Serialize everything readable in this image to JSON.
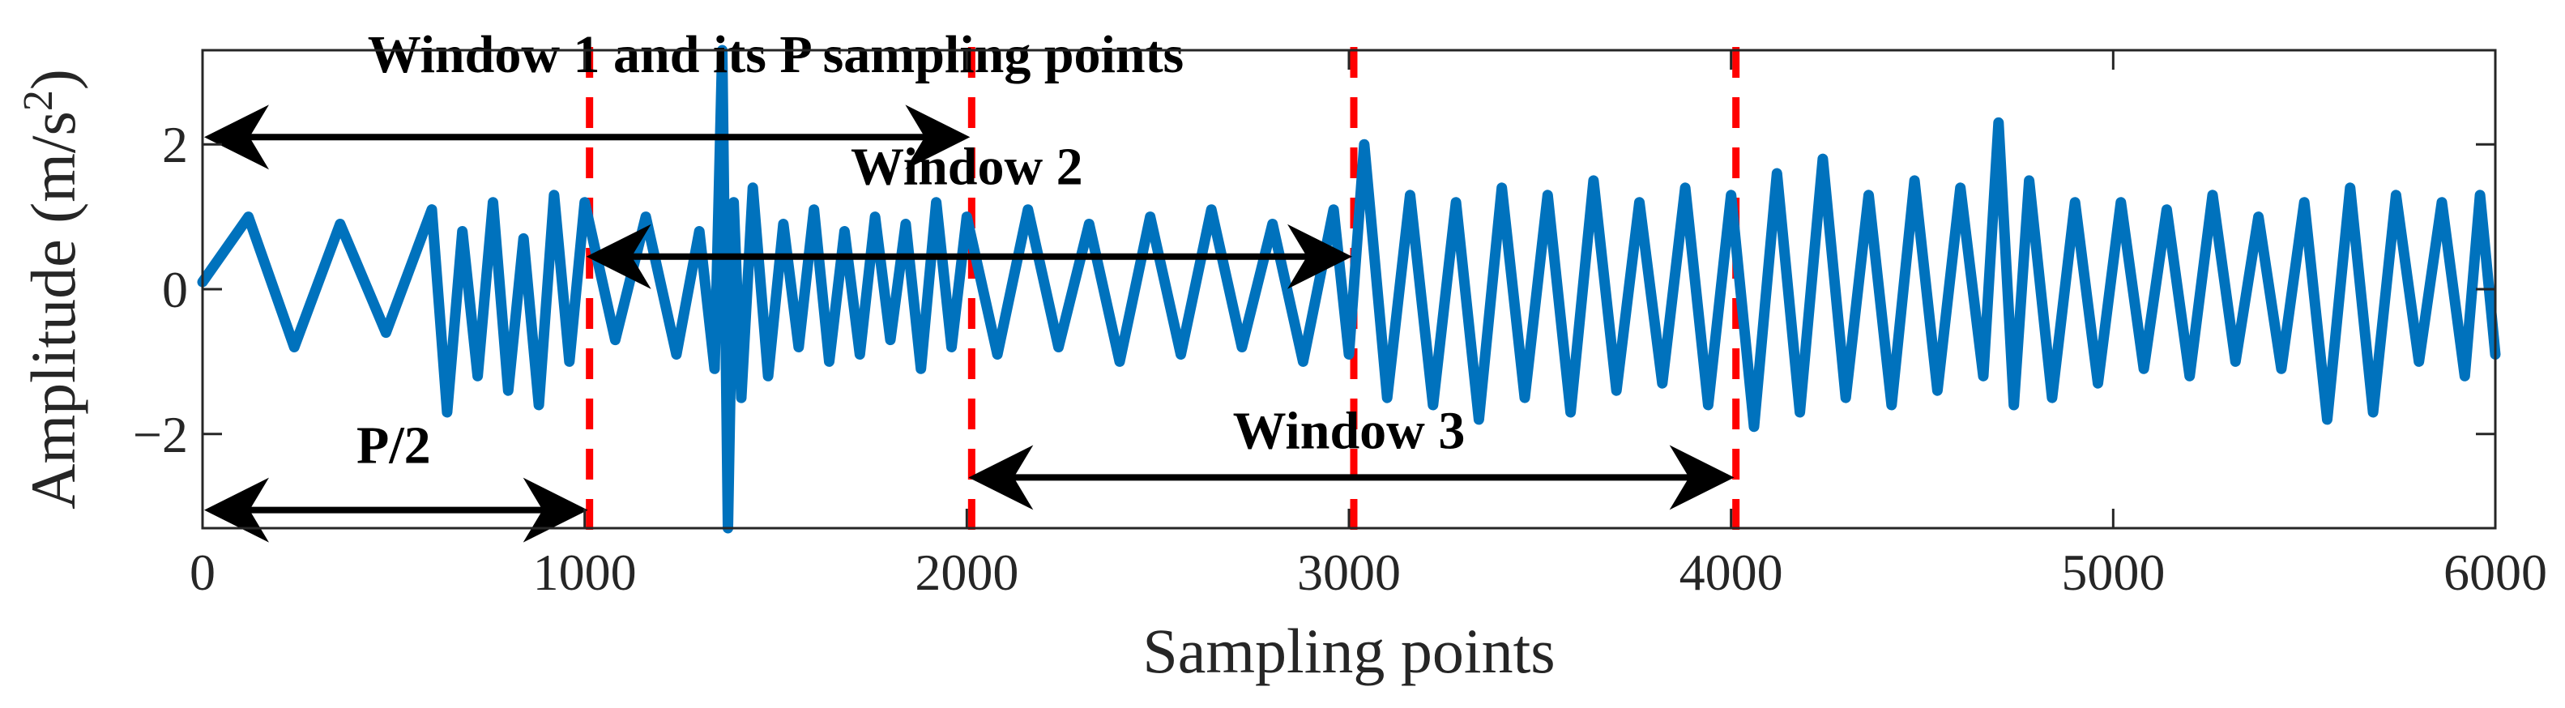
{
  "chart_data": {
    "type": "line",
    "title": "",
    "xlabel": "Sampling points",
    "ylabel": "Amplitude (m/s",
    "ylabel_sup": "2",
    "ylabel_close": ")",
    "xlim": [
      0,
      6000
    ],
    "ylim": [
      -3.3,
      3.3
    ],
    "xticks": [
      0,
      1000,
      2000,
      3000,
      4000,
      5000,
      6000
    ],
    "xtick_labels": [
      "0",
      "1000",
      "2000",
      "3000",
      "4000",
      "5000",
      "6000"
    ],
    "yticks": [
      -2,
      0,
      2
    ],
    "ytick_labels": [
      "−2",
      "0",
      "2"
    ],
    "grid": false,
    "legend": "none",
    "series": [
      {
        "color": "#0072BD",
        "x": [
          0,
          120,
          240,
          360,
          480,
          600,
          640,
          680,
          720,
          760,
          800,
          840,
          880,
          920,
          960,
          1000,
          1080,
          1160,
          1240,
          1300,
          1340,
          1360,
          1375,
          1390,
          1410,
          1440,
          1480,
          1520,
          1560,
          1600,
          1640,
          1680,
          1720,
          1760,
          1800,
          1840,
          1880,
          1920,
          1960,
          2000,
          2080,
          2160,
          2240,
          2320,
          2400,
          2480,
          2560,
          2640,
          2720,
          2800,
          2880,
          2960,
          3000,
          3040,
          3100,
          3160,
          3220,
          3280,
          3340,
          3400,
          3460,
          3520,
          3580,
          3640,
          3700,
          3760,
          3820,
          3880,
          3940,
          4000,
          4060,
          4120,
          4180,
          4240,
          4300,
          4360,
          4420,
          4480,
          4540,
          4600,
          4660,
          4700,
          4740,
          4780,
          4840,
          4900,
          4960,
          5020,
          5080,
          5140,
          5200,
          5260,
          5320,
          5380,
          5440,
          5500,
          5560,
          5620,
          5680,
          5740,
          5800,
          5860,
          5920,
          5960,
          6000
        ],
        "y": [
          0.1,
          1.0,
          -0.8,
          0.9,
          -0.6,
          1.1,
          -1.7,
          0.8,
          -1.2,
          1.2,
          -1.4,
          0.7,
          -1.6,
          1.3,
          -1.0,
          1.2,
          -0.7,
          1.0,
          -0.9,
          0.8,
          -1.1,
          3.3,
          -3.3,
          1.2,
          -1.5,
          1.4,
          -1.2,
          0.9,
          -0.8,
          1.1,
          -1.0,
          0.8,
          -0.9,
          1.0,
          -0.7,
          0.9,
          -1.1,
          1.2,
          -0.8,
          1.0,
          -0.9,
          1.1,
          -0.8,
          0.9,
          -1.0,
          1.0,
          -0.9,
          1.1,
          -0.8,
          0.9,
          -1.0,
          1.1,
          -0.9,
          2.0,
          -1.5,
          1.3,
          -1.6,
          1.2,
          -1.8,
          1.4,
          -1.5,
          1.3,
          -1.7,
          1.5,
          -1.4,
          1.2,
          -1.3,
          1.4,
          -1.6,
          1.3,
          -1.9,
          1.6,
          -1.7,
          1.8,
          -1.5,
          1.3,
          -1.6,
          1.5,
          -1.4,
          1.4,
          -1.2,
          2.3,
          -1.6,
          1.5,
          -1.5,
          1.2,
          -1.3,
          1.2,
          -1.1,
          1.1,
          -1.2,
          1.3,
          -1.0,
          1.0,
          -1.1,
          1.2,
          -1.8,
          1.4,
          -1.7,
          1.3,
          -1.0,
          1.2,
          -1.2,
          1.3,
          -0.9
        ]
      }
    ],
    "window_lines": [
      1000,
      2000,
      3000,
      4000
    ],
    "window_line_color": "#FF0000",
    "annotations": [
      {
        "text": "Window 1 and its P sampling points",
        "x": 1500,
        "y": 3.0
      },
      {
        "text": "Window 2",
        "x": 2000,
        "y": 1.45
      },
      {
        "text": "Window 3",
        "x": 3000,
        "y": -2.2
      },
      {
        "text": "P/2",
        "x": 500,
        "y": -2.4
      }
    ],
    "arrows": [
      {
        "name": "window-1-arrow",
        "from": 0,
        "to": 2000,
        "y": 2.1
      },
      {
        "name": "window-2-arrow",
        "from": 1000,
        "to": 3000,
        "y": 0.45
      },
      {
        "name": "window-3-arrow",
        "from": 2000,
        "to": 4000,
        "y": -2.6
      },
      {
        "name": "half-window-arrow",
        "from": 0,
        "to": 1000,
        "y": -3.05
      }
    ]
  }
}
